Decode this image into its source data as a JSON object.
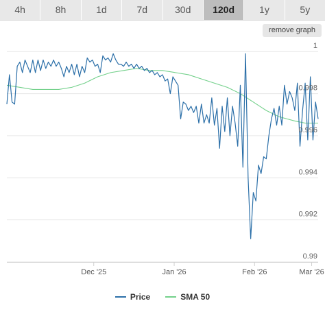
{
  "tabs": [
    {
      "label": "4h",
      "active": false
    },
    {
      "label": "8h",
      "active": false
    },
    {
      "label": "1d",
      "active": false
    },
    {
      "label": "7d",
      "active": false
    },
    {
      "label": "30d",
      "active": false
    },
    {
      "label": "120d",
      "active": true
    },
    {
      "label": "1y",
      "active": false
    },
    {
      "label": "5y",
      "active": false
    }
  ],
  "remove_graph_label": "remove graph",
  "colors": {
    "price": "#2b6fa8",
    "sma": "#72d08a",
    "grid": "#e6e6e6",
    "axis": "#cfcfcf"
  },
  "chart_data": {
    "type": "line",
    "title": "",
    "xlabel": "",
    "ylabel": "",
    "x_range": [
      0,
      120
    ],
    "ylim": [
      0.99,
      1.0003
    ],
    "y_ticks": [
      {
        "value": 1.0,
        "label": "1"
      },
      {
        "value": 0.998,
        "label": "0.998"
      },
      {
        "value": 0.996,
        "label": "0.996"
      },
      {
        "value": 0.994,
        "label": "0.994"
      },
      {
        "value": 0.992,
        "label": "0.992"
      },
      {
        "value": 0.99,
        "label": "0.99"
      }
    ],
    "x_ticks": [
      {
        "x": 33.5,
        "label": "Dec '25"
      },
      {
        "x": 64.5,
        "label": "Jan '26"
      },
      {
        "x": 95.5,
        "label": "Feb '26"
      },
      {
        "x": 117.5,
        "label": "Mar '26"
      }
    ],
    "grid": true,
    "legend_position": "bottom-center",
    "series": [
      {
        "name": "Price",
        "color": "#2b6fa8",
        "points": [
          [
            0,
            0.9975
          ],
          [
            1,
            0.9989
          ],
          [
            2,
            0.9976
          ],
          [
            3,
            0.9975
          ],
          [
            4,
            0.9993
          ],
          [
            5,
            0.9995
          ],
          [
            6,
            0.999
          ],
          [
            7,
            0.9996
          ],
          [
            8,
            0.9993
          ],
          [
            9,
            0.999
          ],
          [
            10,
            0.9996
          ],
          [
            11,
            0.999
          ],
          [
            12,
            0.9996
          ],
          [
            13,
            0.9991
          ],
          [
            14,
            0.9996
          ],
          [
            15,
            0.9992
          ],
          [
            16,
            0.9995
          ],
          [
            17,
            0.9993
          ],
          [
            18,
            0.9996
          ],
          [
            19,
            0.9993
          ],
          [
            20,
            0.9995
          ],
          [
            21,
            0.9992
          ],
          [
            22,
            0.9988
          ],
          [
            23,
            0.9993
          ],
          [
            24,
            0.999
          ],
          [
            25,
            0.9994
          ],
          [
            26,
            0.9989
          ],
          [
            27,
            0.9994
          ],
          [
            28,
            0.9988
          ],
          [
            29,
            0.9993
          ],
          [
            30,
            0.999
          ],
          [
            31,
            0.9997
          ],
          [
            32,
            0.9995
          ],
          [
            33,
            0.9996
          ],
          [
            34,
            0.9993
          ],
          [
            35,
            0.9994
          ],
          [
            36,
            0.999
          ],
          [
            37,
            0.9998
          ],
          [
            38,
            0.9996
          ],
          [
            39,
            0.9997
          ],
          [
            40,
            0.9995
          ],
          [
            41,
            0.9999
          ],
          [
            42,
            0.9996
          ],
          [
            43,
            0.9994
          ],
          [
            44,
            0.9994
          ],
          [
            45,
            0.9993
          ],
          [
            46,
            0.9995
          ],
          [
            47,
            0.9993
          ],
          [
            48,
            0.9994
          ],
          [
            49,
            0.9992
          ],
          [
            50,
            0.9994
          ],
          [
            51,
            0.9992
          ],
          [
            52,
            0.9993
          ],
          [
            53,
            0.9991
          ],
          [
            54,
            0.9992
          ],
          [
            55,
            0.999
          ],
          [
            56,
            0.9991
          ],
          [
            57,
            0.9989
          ],
          [
            58,
            0.999
          ],
          [
            59,
            0.9988
          ],
          [
            60,
            0.9989
          ],
          [
            61,
            0.9986
          ],
          [
            62,
            0.9987
          ],
          [
            63,
            0.998
          ],
          [
            64,
            0.9988
          ],
          [
            65,
            0.9986
          ],
          [
            66,
            0.9984
          ],
          [
            67,
            0.9968
          ],
          [
            68,
            0.9976
          ],
          [
            69,
            0.9975
          ],
          [
            70,
            0.9972
          ],
          [
            71,
            0.9974
          ],
          [
            72,
            0.9971
          ],
          [
            73,
            0.9974
          ],
          [
            74,
            0.9966
          ],
          [
            75,
            0.9975
          ],
          [
            76,
            0.9966
          ],
          [
            77,
            0.997
          ],
          [
            78,
            0.9966
          ],
          [
            79,
            0.9978
          ],
          [
            80,
            0.9965
          ],
          [
            81,
            0.9973
          ],
          [
            82,
            0.9954
          ],
          [
            83,
            0.9974
          ],
          [
            84,
            0.9962
          ],
          [
            85,
            0.9978
          ],
          [
            86,
            0.996
          ],
          [
            87,
            0.9974
          ],
          [
            88,
            0.9966
          ],
          [
            89,
            0.9955
          ],
          [
            90,
            0.9984
          ],
          [
            91,
            0.9945
          ],
          [
            92,
            0.9999
          ],
          [
            93,
            0.994
          ],
          [
            94,
            0.9911
          ],
          [
            95,
            0.9933
          ],
          [
            96,
            0.9929
          ],
          [
            97,
            0.9946
          ],
          [
            98,
            0.9942
          ],
          [
            99,
            0.995
          ],
          [
            100,
            0.9949
          ],
          [
            101,
            0.996
          ],
          [
            102,
            0.9968
          ],
          [
            103,
            0.9973
          ],
          [
            104,
            0.9965
          ],
          [
            105,
            0.9974
          ],
          [
            106,
            0.9965
          ],
          [
            107,
            0.9984
          ],
          [
            108,
            0.9975
          ],
          [
            109,
            0.9981
          ],
          [
            110,
            0.9978
          ],
          [
            111,
            0.9972
          ],
          [
            112,
            0.9985
          ],
          [
            113,
            0.9955
          ],
          [
            114,
            0.9972
          ],
          [
            115,
            0.9985
          ],
          [
            116,
            0.9958
          ],
          [
            117,
            0.9988
          ],
          [
            118,
            0.9958
          ],
          [
            119,
            0.9976
          ],
          [
            120,
            0.9968
          ]
        ]
      },
      {
        "name": "SMA 50",
        "color": "#72d08a",
        "points": [
          [
            0,
            0.9984
          ],
          [
            10,
            0.9982
          ],
          [
            20,
            0.9982
          ],
          [
            25,
            0.9983
          ],
          [
            30,
            0.9985
          ],
          [
            35,
            0.9988
          ],
          [
            40,
            0.999
          ],
          [
            45,
            0.9991
          ],
          [
            50,
            0.9992
          ],
          [
            55,
            0.9991
          ],
          [
            60,
            0.9991
          ],
          [
            65,
            0.999
          ],
          [
            70,
            0.9989
          ],
          [
            75,
            0.9987
          ],
          [
            80,
            0.9985
          ],
          [
            85,
            0.9983
          ],
          [
            90,
            0.998
          ],
          [
            95,
            0.9976
          ],
          [
            100,
            0.9972
          ],
          [
            105,
            0.9969
          ],
          [
            108,
            0.9968
          ],
          [
            111,
            0.9967
          ],
          [
            115,
            0.9966
          ],
          [
            120,
            0.9966
          ]
        ]
      }
    ]
  }
}
